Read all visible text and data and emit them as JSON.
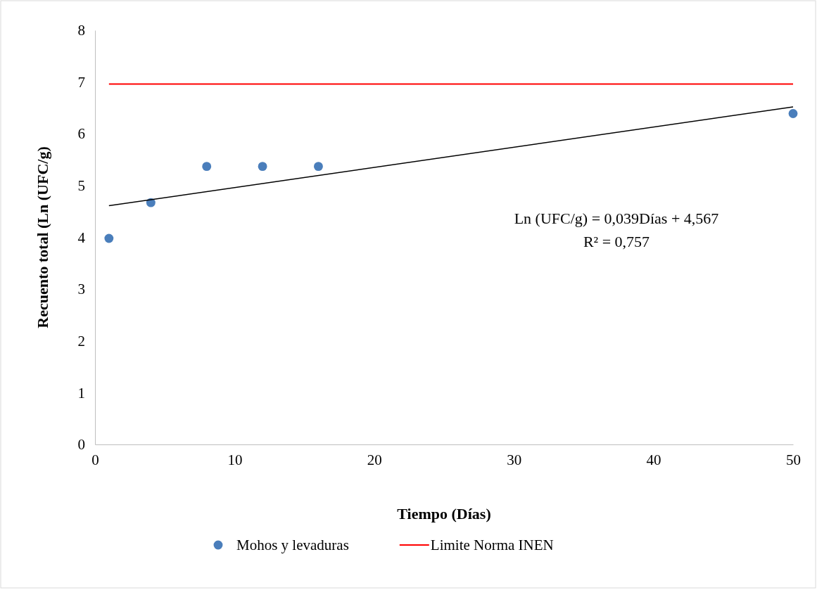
{
  "chart_data": {
    "type": "scatter",
    "xlabel": "Tiempo (Días)",
    "ylabel": "Recuento total (Ln (UFC/g)",
    "xlim": [
      0,
      50
    ],
    "ylim": [
      0,
      8
    ],
    "xticks": [
      0,
      10,
      20,
      30,
      40,
      50
    ],
    "yticks": [
      0,
      1,
      2,
      3,
      4,
      5,
      6,
      7,
      8
    ],
    "grid": false,
    "legend": "bottom",
    "series": [
      {
        "name": "Mohos y levaduras",
        "marker": "circle",
        "color": "#4a7ebb",
        "x": [
          1,
          4,
          8,
          12,
          16,
          50
        ],
        "values": [
          3.98,
          4.67,
          5.37,
          5.37,
          5.37,
          6.39
        ]
      },
      {
        "name": "Limite Norma INEN",
        "type": "line",
        "marker": "none",
        "color": "#ff0000",
        "x": [
          1,
          50
        ],
        "values": [
          6.96,
          6.96
        ]
      },
      {
        "type": "line",
        "marker": "none",
        "color": "#000000",
        "x": [
          1,
          50
        ],
        "values": [
          4.61,
          6.52
        ]
      }
    ],
    "annotations": [
      "Ln (UFC/g) = 0,039Días + 4,567",
      "R² = 0,757"
    ]
  }
}
